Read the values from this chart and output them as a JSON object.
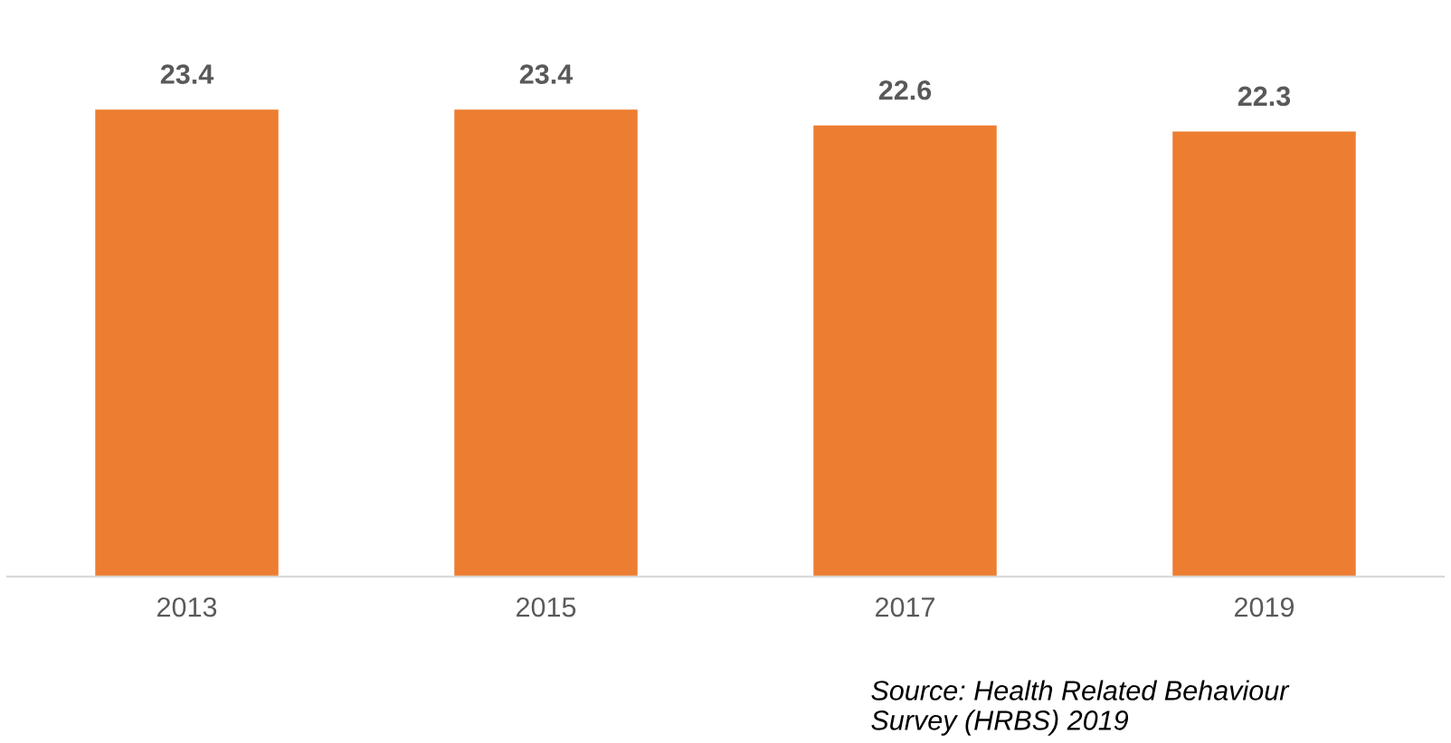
{
  "chart_data": {
    "type": "bar",
    "categories": [
      "2013",
      "2015",
      "2017",
      "2019"
    ],
    "values": [
      23.4,
      23.4,
      22.6,
      22.3
    ],
    "color": "#ed7d31",
    "data_labels": true,
    "tick_labels": "x",
    "grid": false,
    "annotations": [
      "Source: Health Related Behaviour\nSurvey (HRBS) 2019"
    ]
  }
}
